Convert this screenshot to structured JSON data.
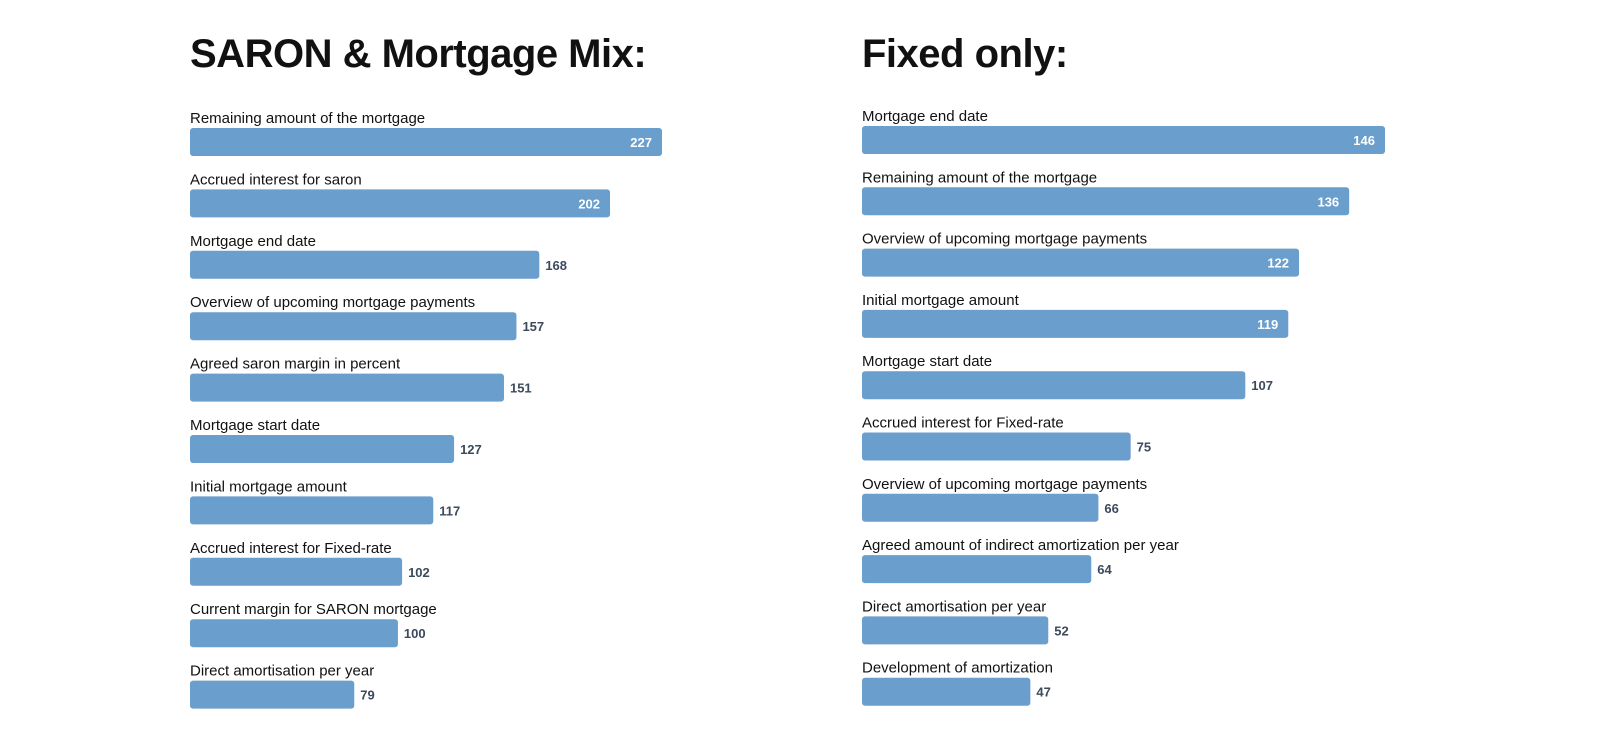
{
  "accent_color": "#6a9ecd",
  "chart_data": [
    {
      "id": "left",
      "type": "bar",
      "orientation": "horizontal",
      "title": "SARON & Mortgage Mix:",
      "xlim": [
        0,
        227
      ],
      "categories": [
        "Remaining amount of the mortgage",
        "Accrued interest for saron",
        "Mortgage end date",
        "Overview of upcoming mortgage payments",
        "Agreed saron margin in percent",
        "Mortgage start date",
        "Initial mortgage amount",
        "Accrued interest for Fixed-rate",
        "Current margin for SARON mortgage",
        "Direct amortisation per year"
      ],
      "values": [
        227,
        202,
        168,
        157,
        151,
        127,
        117,
        102,
        100,
        79
      ],
      "value_labels": [
        "227",
        "202",
        "168",
        "157",
        "151",
        "127",
        "117",
        "102",
        "100",
        "79"
      ]
    },
    {
      "id": "right",
      "type": "bar",
      "orientation": "horizontal",
      "title": "Fixed only:",
      "xlim": [
        0,
        146
      ],
      "categories": [
        "Mortgage end date",
        "Remaining amount of the mortgage",
        "Overview of upcoming mortgage payments",
        "Initial mortgage amount",
        "Mortgage start date",
        "Accrued interest for Fixed-rate",
        "Overview of upcoming mortgage payments",
        "Agreed amount of indirect amortization per year",
        "Direct amortisation per year",
        "Development of amortization"
      ],
      "values": [
        146,
        136,
        122,
        119,
        107,
        75,
        66,
        64,
        52,
        47
      ],
      "value_labels": [
        "146",
        "136",
        "122",
        "119",
        "107",
        "75",
        "66",
        "64",
        "52",
        "47"
      ]
    }
  ]
}
